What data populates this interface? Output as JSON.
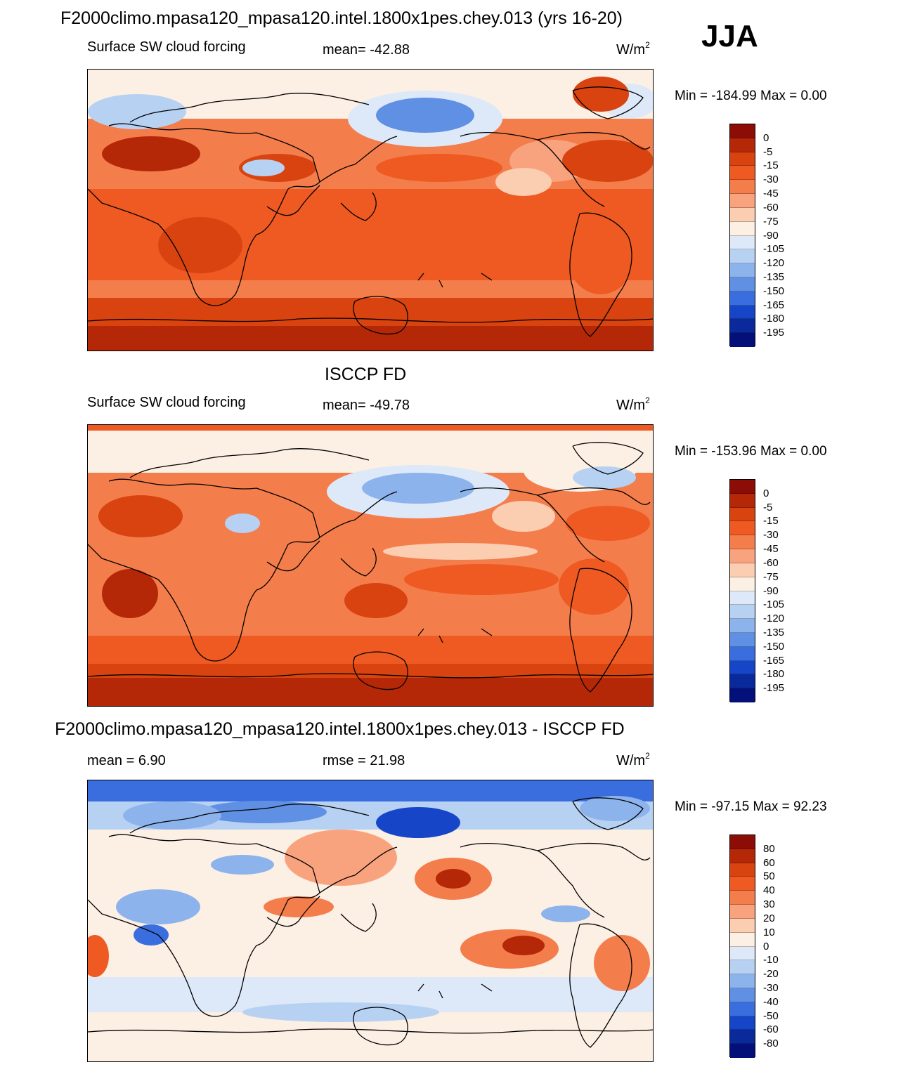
{
  "season": "JJA",
  "chart_data": [
    {
      "type": "heatmap",
      "title": "F2000climo.mpasa120_mpasa120.intel.1800x1pes.chey.013 (yrs 16-20)",
      "left_label": "Surface SW cloud forcing",
      "center_label": "mean= -42.88",
      "units": "W/m",
      "units_exp": "2",
      "min_max": "Min = -184.99 Max =   0.00",
      "colorbar_levels": [
        "0",
        "-5",
        "-15",
        "-30",
        "-45",
        "-60",
        "-75",
        "-90",
        "-105",
        "-120",
        "-135",
        "-150",
        "-165",
        "-180",
        "-195"
      ],
      "colorbar_colors": [
        "#8b0d06",
        "#b42808",
        "#d8430f",
        "#ee5a22",
        "#f47d4c",
        "#f8a37e",
        "#fbcdb1",
        "#fcefe4",
        "#dde9f8",
        "#b7d1f3",
        "#8db3ec",
        "#5f90e3",
        "#3a6ede",
        "#1645c8",
        "#0a2a9c",
        "#04107a"
      ]
    },
    {
      "type": "heatmap",
      "title": "ISCCP FD",
      "left_label": "Surface SW cloud forcing",
      "center_label": "mean= -49.78",
      "units": "W/m",
      "units_exp": "2",
      "min_max": "Min = -153.96 Max =   0.00",
      "colorbar_levels": [
        "0",
        "-5",
        "-15",
        "-30",
        "-45",
        "-60",
        "-75",
        "-90",
        "-105",
        "-120",
        "-135",
        "-150",
        "-165",
        "-180",
        "-195"
      ],
      "colorbar_colors": [
        "#8b0d06",
        "#b42808",
        "#d8430f",
        "#ee5a22",
        "#f47d4c",
        "#f8a37e",
        "#fbcdb1",
        "#fcefe4",
        "#dde9f8",
        "#b7d1f3",
        "#8db3ec",
        "#5f90e3",
        "#3a6ede",
        "#1645c8",
        "#0a2a9c",
        "#04107a"
      ]
    },
    {
      "type": "heatmap",
      "title": "F2000climo.mpasa120_mpasa120.intel.1800x1pes.chey.013 - ISCCP FD",
      "left_label": "mean =   6.90",
      "center_label": "rmse =  21.98",
      "units": "W/m",
      "units_exp": "2",
      "min_max": "Min = -97.15 Max =  92.23",
      "colorbar_levels": [
        "80",
        "60",
        "50",
        "40",
        "30",
        "20",
        "10",
        "0",
        "-10",
        "-20",
        "-30",
        "-40",
        "-50",
        "-60",
        "-80"
      ],
      "colorbar_colors": [
        "#8b0d06",
        "#b42808",
        "#d8430f",
        "#ee5a22",
        "#f47d4c",
        "#f8a37e",
        "#fbcdb1",
        "#fcefe4",
        "#dde9f8",
        "#b7d1f3",
        "#8db3ec",
        "#5f90e3",
        "#3a6ede",
        "#1645c8",
        "#0a2a9c",
        "#04107a"
      ]
    }
  ]
}
